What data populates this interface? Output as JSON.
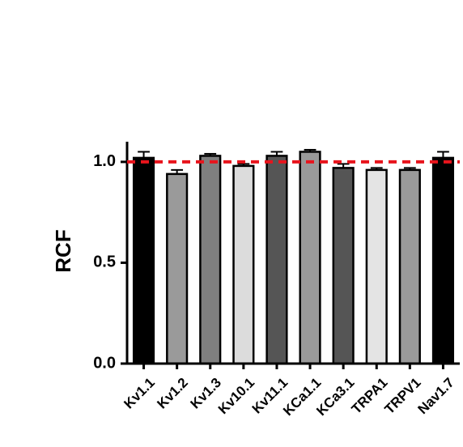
{
  "chart_data": {
    "type": "bar",
    "y_label": "RCF",
    "categories": [
      "Kv1.1",
      "Kv1.2",
      "Kv1.3",
      "Kv10.1",
      "Kv11.1",
      "KCa1.1",
      "KCa3.1",
      "TRPA1",
      "TRPV1",
      "Nav1.7"
    ],
    "values": [
      1.02,
      0.94,
      1.03,
      0.98,
      1.03,
      1.05,
      0.97,
      0.96,
      0.96,
      1.02
    ],
    "errors": [
      0.03,
      0.02,
      0.01,
      0.01,
      0.02,
      0.01,
      0.02,
      0.01,
      0.01,
      0.03
    ],
    "colors": [
      "#000000",
      "#9a9a9a",
      "#7f7f7f",
      "#dcdcdc",
      "#555555",
      "#9a9a9a",
      "#555555",
      "#e4e4e4",
      "#9a9a9a",
      "#000000"
    ],
    "reference_line": {
      "value": 1.0,
      "color": "#e8141c"
    },
    "ylim": [
      0,
      1.1
    ],
    "yticks": [
      {
        "value": 0,
        "label": "0.0"
      },
      {
        "value": 0.5,
        "label": "0.5"
      },
      {
        "value": 1,
        "label": "1.0"
      }
    ]
  }
}
